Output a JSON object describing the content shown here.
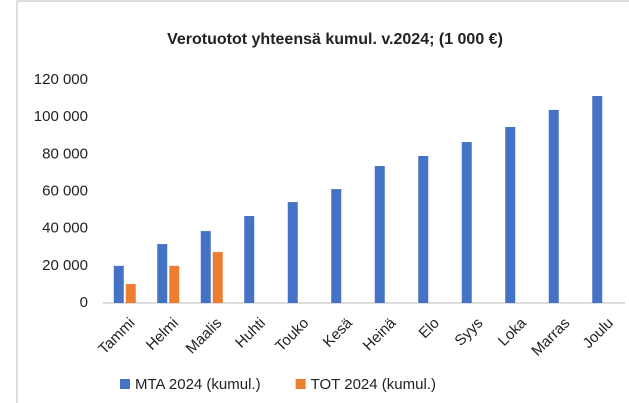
{
  "chart_data": {
    "type": "bar",
    "title": "Verotuotot yhteensä kumul. v.2024; (1 000 €)",
    "categories": [
      "Tammi",
      "Helmi",
      "Maalis",
      "Huhti",
      "Touko",
      "Kesä",
      "Heinä",
      "Elo",
      "Syys",
      "Loka",
      "Marras",
      "Joulu"
    ],
    "series": [
      {
        "name": "MTA 2024 (kumul.)",
        "color": "#4472c4",
        "values": [
          20000,
          31700,
          38700,
          46800,
          54300,
          61300,
          73700,
          79100,
          86600,
          94700,
          103900,
          111400
        ]
      },
      {
        "name": "TOT 2024 (kumul.)",
        "color": "#ed7d31",
        "values": [
          10200,
          20000,
          27400,
          null,
          null,
          null,
          null,
          null,
          null,
          null,
          null,
          null
        ]
      }
    ],
    "ylim": [
      0,
      120000
    ],
    "yticks": [
      0,
      {
        "value": 20000,
        "label": "20 000"
      },
      {
        "value": 40000,
        "label": "40 000"
      },
      {
        "value": 60000,
        "label": "60 000"
      },
      {
        "value": 80000,
        "label": "80 000"
      },
      {
        "value": 100000,
        "label": "100 000"
      },
      {
        "value": 120000,
        "label": "120 000"
      }
    ],
    "grid": false
  }
}
